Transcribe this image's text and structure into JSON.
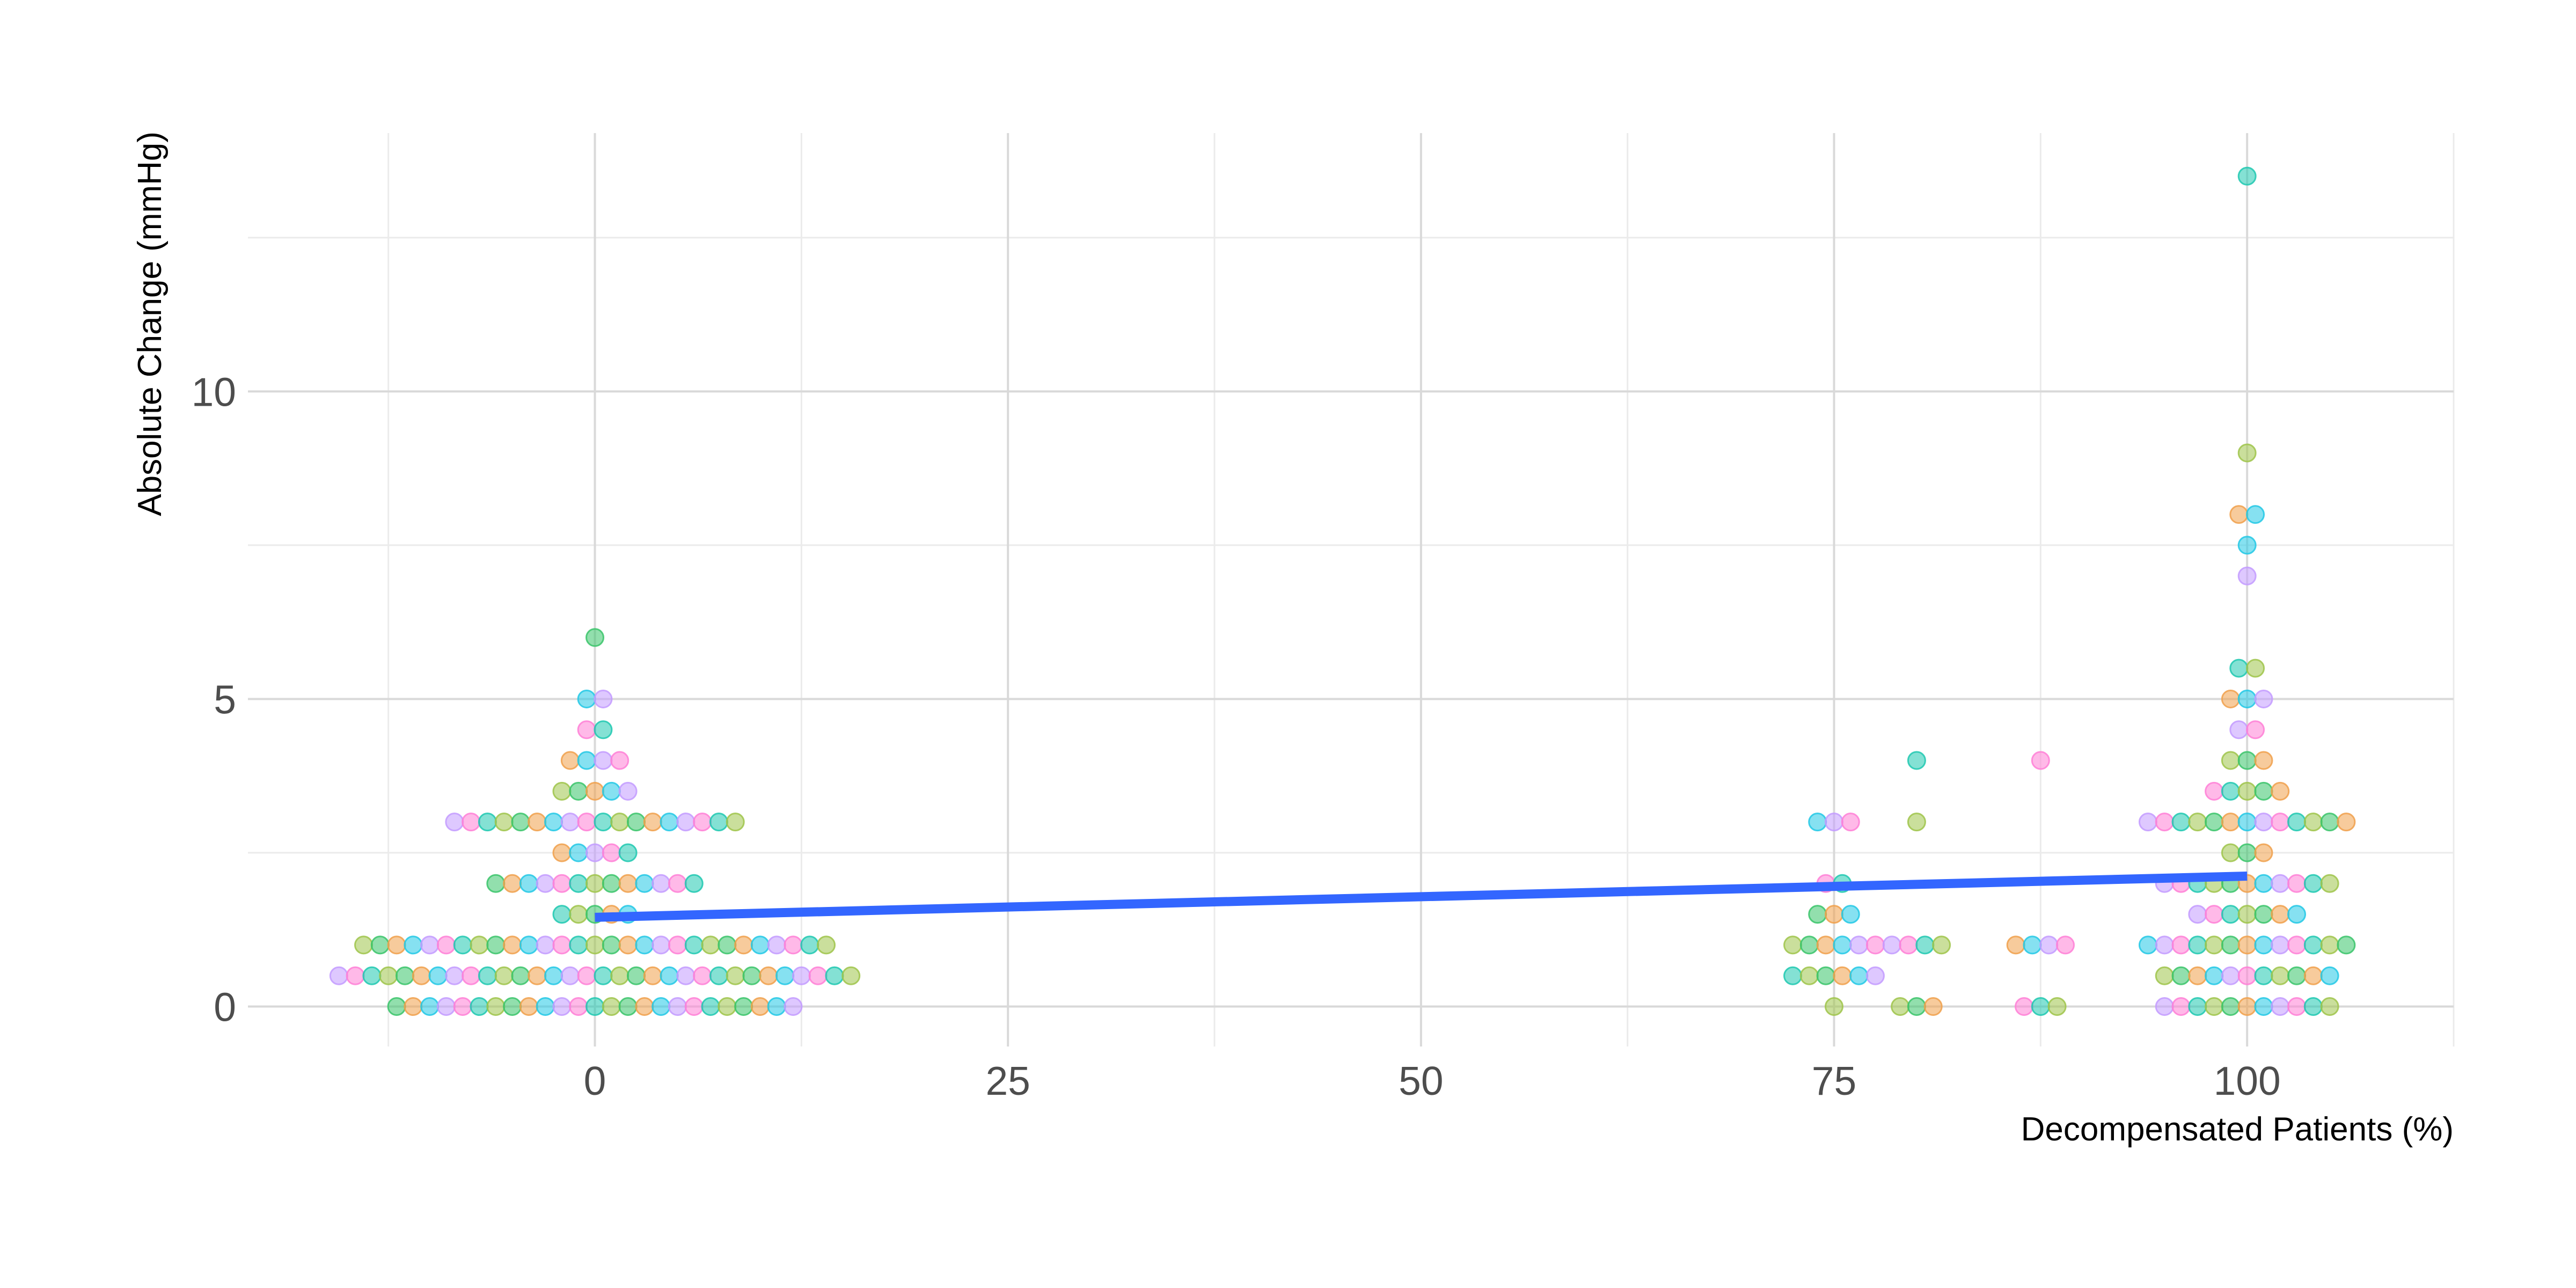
{
  "chart_data": {
    "type": "scatter",
    "title": "",
    "xlabel": "Decompensated Patients (%)",
    "ylabel": "Absolute Change (mmHg)",
    "xlim": [
      -21,
      112.5
    ],
    "ylim": [
      -0.65,
      14.2
    ],
    "x_ticks": [
      0,
      25,
      50,
      75,
      100
    ],
    "y_ticks": [
      0,
      5,
      10
    ],
    "grid": true,
    "legend": "none",
    "point_alpha": 0.55,
    "palette": [
      "#39c46a",
      "#22c8e5",
      "#ff7fd6",
      "#9fc44a",
      "#f0a04b",
      "#c39bff",
      "#1fc8b0"
    ],
    "groups": [
      {
        "x": 0,
        "rows": [
          {
            "y": 0,
            "n": 25
          },
          {
            "y": 0.5,
            "n": 32
          },
          {
            "y": 1,
            "n": 29
          },
          {
            "y": 1.5,
            "n": 5
          },
          {
            "y": 2,
            "n": 13
          },
          {
            "y": 2.5,
            "n": 5
          },
          {
            "y": 3,
            "n": 18
          },
          {
            "y": 3.5,
            "n": 5
          },
          {
            "y": 4,
            "n": 4
          },
          {
            "y": 4.5,
            "n": 2
          },
          {
            "y": 5,
            "n": 2
          },
          {
            "y": 6,
            "n": 1
          }
        ]
      },
      {
        "x": 75,
        "rows": [
          {
            "y": 0,
            "n": 1
          },
          {
            "y": 0.5,
            "n": 6
          },
          {
            "y": 1,
            "n": 6
          },
          {
            "y": 1.5,
            "n": 3
          },
          {
            "y": 2,
            "n": 2
          },
          {
            "y": 3,
            "n": 3
          }
        ]
      },
      {
        "x": 80,
        "rows": [
          {
            "y": 0,
            "n": 3
          },
          {
            "y": 1,
            "n": 4
          },
          {
            "y": 3,
            "n": 1
          },
          {
            "y": 4,
            "n": 1
          }
        ]
      },
      {
        "x": 87.5,
        "rows": [
          {
            "y": 0,
            "n": 3
          },
          {
            "y": 1,
            "n": 4
          },
          {
            "y": 4,
            "n": 1
          }
        ]
      },
      {
        "x": 100,
        "rows": [
          {
            "y": 0,
            "n": 11
          },
          {
            "y": 0.5,
            "n": 11
          },
          {
            "y": 1,
            "n": 13
          },
          {
            "y": 1.5,
            "n": 7
          },
          {
            "y": 2,
            "n": 11
          },
          {
            "y": 2.5,
            "n": 3
          },
          {
            "y": 3,
            "n": 13
          },
          {
            "y": 3.5,
            "n": 5
          },
          {
            "y": 4,
            "n": 3
          },
          {
            "y": 4.5,
            "n": 2
          },
          {
            "y": 5,
            "n": 3
          },
          {
            "y": 5.5,
            "n": 2
          },
          {
            "y": 7,
            "n": 1
          },
          {
            "y": 7.5,
            "n": 1
          },
          {
            "y": 8,
            "n": 2
          },
          {
            "y": 9,
            "n": 1
          },
          {
            "y": 13.5,
            "n": 1
          }
        ]
      }
    ],
    "trend_line": {
      "color": "#3366ff",
      "x": [
        0,
        100
      ],
      "y": [
        1.45,
        2.12
      ]
    }
  }
}
